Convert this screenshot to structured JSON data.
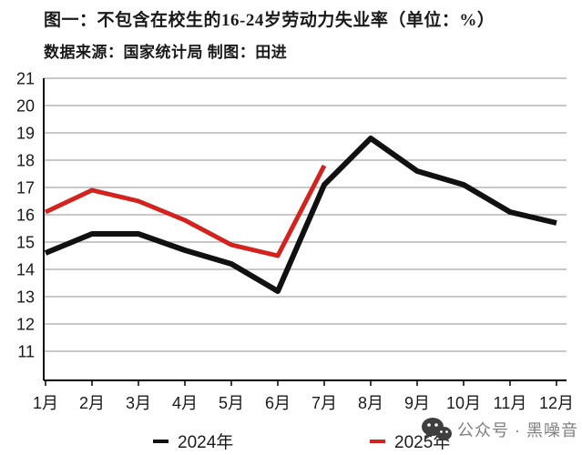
{
  "header": {
    "title": "图一：不包含在校生的16-24岁劳动力失业率（单位：%）",
    "source_line": "数据来源：国家统计局 制图：田进"
  },
  "chart_data": {
    "type": "line",
    "categories": [
      "1月",
      "2月",
      "3月",
      "4月",
      "5月",
      "6月",
      "7月",
      "8月",
      "9月",
      "10月",
      "11月",
      "12月"
    ],
    "series": [
      {
        "name": "2024年",
        "color": "#111111",
        "values": [
          14.6,
          15.3,
          15.3,
          14.7,
          14.2,
          13.2,
          17.1,
          18.8,
          17.6,
          17.1,
          16.1,
          15.7
        ]
      },
      {
        "name": "2025年",
        "color": "#d2231e",
        "values": [
          16.1,
          16.9,
          16.5,
          15.8,
          14.9,
          14.5,
          17.8
        ]
      }
    ],
    "ylim": [
      11,
      21
    ],
    "yticks": [
      11,
      12,
      13,
      14,
      15,
      16,
      17,
      18,
      19,
      20,
      21
    ],
    "grid": true,
    "grid_color": "#a8a8a8",
    "axis_color": "#000000",
    "legend_position": "bottom",
    "title": "图一：不包含在校生的16-24岁劳动力失业率（单位：%）",
    "xlabel": "",
    "ylabel": ""
  },
  "watermark": {
    "text": "公众号 · 黑噪音",
    "color": "#808080",
    "icon": "wechat-icon"
  }
}
